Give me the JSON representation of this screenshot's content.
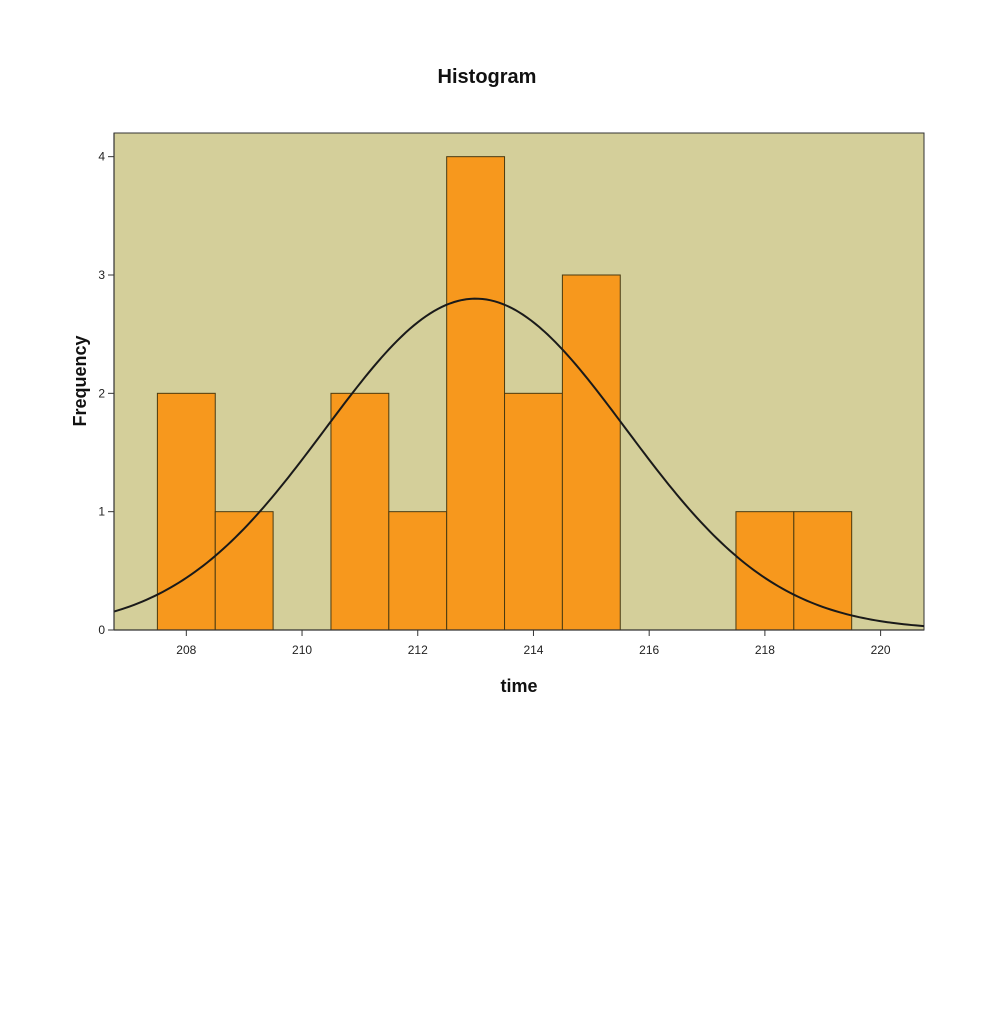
{
  "chart_data": {
    "type": "bar",
    "title": "Histogram",
    "xlabel": "time",
    "ylabel": "Frequency",
    "bin_width": 1,
    "bins": [
      {
        "x_start": 207.5,
        "x_end": 208.5,
        "count": 2
      },
      {
        "x_start": 208.5,
        "x_end": 209.5,
        "count": 1
      },
      {
        "x_start": 210.5,
        "x_end": 211.5,
        "count": 2
      },
      {
        "x_start": 211.5,
        "x_end": 212.5,
        "count": 1
      },
      {
        "x_start": 212.5,
        "x_end": 213.5,
        "count": 4
      },
      {
        "x_start": 213.5,
        "x_end": 214.5,
        "count": 2
      },
      {
        "x_start": 214.5,
        "x_end": 215.5,
        "count": 3
      },
      {
        "x_start": 217.5,
        "x_end": 218.5,
        "count": 1
      },
      {
        "x_start": 218.5,
        "x_end": 219.5,
        "count": 1
      }
    ],
    "xlim": [
      206.75,
      220.75
    ],
    "ylim": [
      0,
      4.2
    ],
    "xticks": [
      208,
      210,
      212,
      214,
      216,
      218,
      220
    ],
    "yticks": [
      0,
      1,
      2,
      3,
      4
    ],
    "normal_curve": {
      "mean": 213.0,
      "peak": 2.8,
      "sd": 2.6
    },
    "grid": false,
    "legend": "none",
    "colors": {
      "bar_fill": "#f7981d",
      "bar_stroke": "#4a3a10",
      "plot_background": "#d4cf9a",
      "curve": "#1a1a1a",
      "axis": "#333333"
    }
  }
}
